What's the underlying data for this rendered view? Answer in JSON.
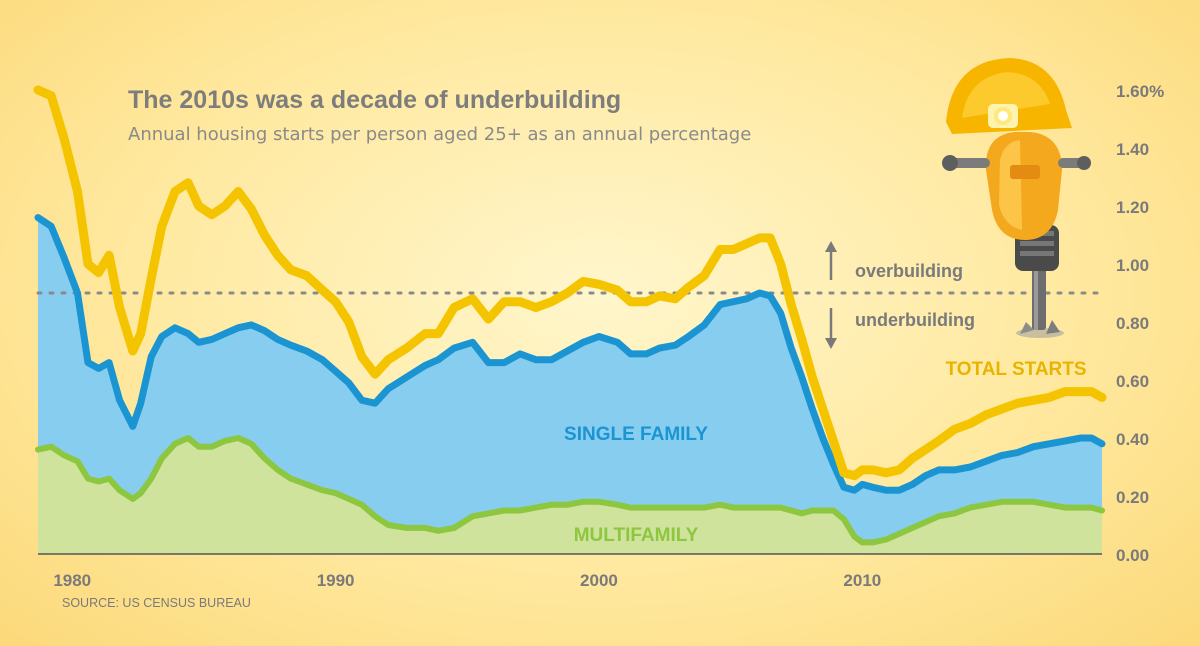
{
  "title": "The 2010s was a decade of underbuilding",
  "subtitle": "Annual housing starts per person aged 25+ as an annual percentage",
  "source": "SOURCE: US CENSUS BUREAU",
  "annotations": {
    "overbuilding": "overbuilding",
    "underbuilding": "underbuilding"
  },
  "colors": {
    "total": "#f5c400",
    "single": "#1b95d2",
    "single_fill": "#86cdf0",
    "multi": "#8dc63f",
    "multi_fill": "#cfe39c",
    "reference": "#8a8a8a",
    "axis_text": "#7a7a7a"
  },
  "icon": "jackhammer-robot-icon",
  "chart_data": {
    "type": "area",
    "xlim": [
      1978.7,
      2019.1
    ],
    "ylim": [
      0,
      1.6
    ],
    "x_ticks": [
      1980,
      1990,
      2000,
      2010
    ],
    "x_tick_labels": [
      "1980",
      "1990",
      "2000",
      "2010"
    ],
    "y_ticks": [
      0,
      0.2,
      0.4,
      0.6,
      0.8,
      1.0,
      1.2,
      1.4,
      1.6
    ],
    "y_tick_labels": [
      "0.00",
      "0.20",
      "0.40",
      "0.60",
      "0.80",
      "1.00",
      "1.20",
      "1.40",
      "1.60%"
    ],
    "reference_line": 0.9,
    "series": [
      {
        "name": "TOTAL STARTS",
        "x": [
          1978.7,
          1979.2,
          1979.7,
          1980.2,
          1980.6,
          1981.0,
          1981.4,
          1981.8,
          1982.3,
          1982.6,
          1983.0,
          1983.4,
          1983.9,
          1984.4,
          1984.8,
          1985.3,
          1985.8,
          1986.3,
          1986.8,
          1987.3,
          1987.8,
          1988.3,
          1988.9,
          1989.5,
          1990.0,
          1990.5,
          1991.0,
          1991.5,
          1992.0,
          1992.7,
          1993.4,
          1993.9,
          1994.5,
          1995.2,
          1995.8,
          1996.4,
          1997.0,
          1997.6,
          1998.2,
          1998.8,
          1999.4,
          2000.0,
          2000.7,
          2001.2,
          2001.8,
          2002.3,
          2002.9,
          2003.4,
          2004.0,
          2004.6,
          2005.1,
          2005.6,
          2006.1,
          2006.5,
          2006.9,
          2007.3,
          2007.7,
          2008.1,
          2008.5,
          2008.9,
          2009.3,
          2009.7,
          2010.0,
          2010.4,
          2010.9,
          2011.4,
          2011.9,
          2012.4,
          2012.9,
          2013.5,
          2014.1,
          2014.7,
          2015.3,
          2015.9,
          2016.5,
          2017.1,
          2017.7,
          2018.3,
          2018.7,
          2019.1
        ],
        "y": [
          1.6,
          1.58,
          1.43,
          1.25,
          1.0,
          0.97,
          1.03,
          0.85,
          0.7,
          0.76,
          0.95,
          1.13,
          1.25,
          1.28,
          1.2,
          1.17,
          1.2,
          1.25,
          1.19,
          1.1,
          1.03,
          0.98,
          0.96,
          0.91,
          0.87,
          0.8,
          0.68,
          0.62,
          0.67,
          0.71,
          0.76,
          0.76,
          0.85,
          0.88,
          0.81,
          0.87,
          0.87,
          0.85,
          0.87,
          0.9,
          0.94,
          0.93,
          0.91,
          0.87,
          0.87,
          0.89,
          0.88,
          0.92,
          0.96,
          1.05,
          1.05,
          1.07,
          1.09,
          1.09,
          1.0,
          0.86,
          0.74,
          0.61,
          0.5,
          0.39,
          0.28,
          0.27,
          0.29,
          0.29,
          0.28,
          0.29,
          0.33,
          0.36,
          0.39,
          0.43,
          0.45,
          0.48,
          0.5,
          0.52,
          0.53,
          0.54,
          0.56,
          0.56,
          0.56,
          0.54
        ]
      },
      {
        "name": "SINGLE FAMILY",
        "x": [
          1978.7,
          1979.2,
          1979.7,
          1980.2,
          1980.6,
          1981.0,
          1981.4,
          1981.8,
          1982.3,
          1982.6,
          1983.0,
          1983.4,
          1983.9,
          1984.4,
          1984.8,
          1985.3,
          1985.8,
          1986.3,
          1986.8,
          1987.3,
          1987.8,
          1988.3,
          1988.9,
          1989.5,
          1990.0,
          1990.5,
          1991.0,
          1991.5,
          1992.0,
          1992.7,
          1993.4,
          1993.9,
          1994.5,
          1995.2,
          1995.8,
          1996.4,
          1997.0,
          1997.6,
          1998.2,
          1998.8,
          1999.4,
          2000.0,
          2000.7,
          2001.2,
          2001.8,
          2002.3,
          2002.9,
          2003.4,
          2004.0,
          2004.6,
          2005.1,
          2005.6,
          2006.1,
          2006.5,
          2006.9,
          2007.3,
          2007.7,
          2008.1,
          2008.5,
          2008.9,
          2009.3,
          2009.7,
          2010.0,
          2010.4,
          2010.9,
          2011.4,
          2011.9,
          2012.4,
          2012.9,
          2013.5,
          2014.1,
          2014.7,
          2015.3,
          2015.9,
          2016.5,
          2017.1,
          2017.7,
          2018.3,
          2018.7,
          2019.1
        ],
        "y": [
          1.16,
          1.13,
          1.02,
          0.9,
          0.66,
          0.64,
          0.66,
          0.53,
          0.44,
          0.52,
          0.68,
          0.75,
          0.78,
          0.76,
          0.73,
          0.74,
          0.76,
          0.78,
          0.79,
          0.77,
          0.74,
          0.72,
          0.7,
          0.67,
          0.63,
          0.59,
          0.53,
          0.52,
          0.57,
          0.61,
          0.65,
          0.67,
          0.71,
          0.73,
          0.66,
          0.66,
          0.69,
          0.67,
          0.67,
          0.7,
          0.73,
          0.75,
          0.73,
          0.69,
          0.69,
          0.71,
          0.72,
          0.75,
          0.79,
          0.86,
          0.87,
          0.88,
          0.9,
          0.89,
          0.83,
          0.71,
          0.61,
          0.5,
          0.4,
          0.31,
          0.23,
          0.22,
          0.24,
          0.23,
          0.22,
          0.22,
          0.24,
          0.27,
          0.29,
          0.29,
          0.3,
          0.32,
          0.34,
          0.35,
          0.37,
          0.38,
          0.39,
          0.4,
          0.4,
          0.38
        ]
      },
      {
        "name": "MULTIFAMILY",
        "x": [
          1978.7,
          1979.2,
          1979.7,
          1980.2,
          1980.6,
          1981.0,
          1981.4,
          1981.8,
          1982.3,
          1982.6,
          1983.0,
          1983.4,
          1983.9,
          1984.4,
          1984.8,
          1985.3,
          1985.8,
          1986.3,
          1986.8,
          1987.3,
          1987.8,
          1988.3,
          1988.9,
          1989.5,
          1990.0,
          1990.5,
          1991.0,
          1991.5,
          1992.0,
          1992.7,
          1993.4,
          1993.9,
          1994.5,
          1995.2,
          1995.8,
          1996.4,
          1997.0,
          1997.6,
          1998.2,
          1998.8,
          1999.4,
          2000.0,
          2000.7,
          2001.2,
          2001.8,
          2002.3,
          2002.9,
          2003.4,
          2004.0,
          2004.6,
          2005.1,
          2005.6,
          2006.1,
          2006.5,
          2006.9,
          2007.3,
          2007.7,
          2008.1,
          2008.5,
          2008.9,
          2009.3,
          2009.7,
          2010.0,
          2010.4,
          2010.9,
          2011.4,
          2011.9,
          2012.4,
          2012.9,
          2013.5,
          2014.1,
          2014.7,
          2015.3,
          2015.9,
          2016.5,
          2017.1,
          2017.7,
          2018.3,
          2018.7,
          2019.1
        ],
        "y": [
          0.36,
          0.37,
          0.34,
          0.32,
          0.26,
          0.25,
          0.26,
          0.22,
          0.19,
          0.21,
          0.26,
          0.33,
          0.38,
          0.4,
          0.37,
          0.37,
          0.39,
          0.4,
          0.38,
          0.33,
          0.29,
          0.26,
          0.24,
          0.22,
          0.21,
          0.19,
          0.17,
          0.13,
          0.1,
          0.09,
          0.09,
          0.08,
          0.09,
          0.13,
          0.14,
          0.15,
          0.15,
          0.16,
          0.17,
          0.17,
          0.18,
          0.18,
          0.17,
          0.16,
          0.16,
          0.16,
          0.16,
          0.16,
          0.16,
          0.17,
          0.16,
          0.16,
          0.16,
          0.16,
          0.16,
          0.15,
          0.14,
          0.15,
          0.15,
          0.15,
          0.12,
          0.06,
          0.04,
          0.04,
          0.05,
          0.07,
          0.09,
          0.11,
          0.13,
          0.14,
          0.16,
          0.17,
          0.18,
          0.18,
          0.18,
          0.17,
          0.16,
          0.16,
          0.16,
          0.15
        ]
      }
    ]
  }
}
